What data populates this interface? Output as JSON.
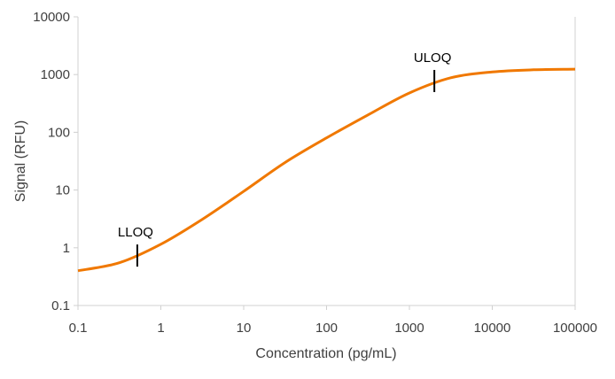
{
  "chart_data": {
    "type": "line",
    "title": "",
    "xlabel": "Concentration (pg/mL)",
    "ylabel": "Signal (RFU)",
    "x_scale": "log",
    "y_scale": "log",
    "xlim": [
      0.1,
      100000
    ],
    "ylim": [
      0.1,
      10000
    ],
    "x_ticks": [
      "0.1",
      "1",
      "10",
      "100",
      "1000",
      "10000",
      "100000"
    ],
    "y_ticks": [
      "0.1",
      "1",
      "10",
      "100",
      "1000",
      "10000"
    ],
    "grid": false,
    "legend": "none",
    "series": [
      {
        "color": "#F07800",
        "x": [
          0.1,
          0.316,
          1,
          3.16,
          10,
          31.6,
          100,
          316,
          1000,
          3162,
          10000,
          31623,
          100000
        ],
        "y": [
          0.4,
          0.55,
          1.15,
          3.1,
          9.5,
          30,
          80,
          200,
          480,
          880,
          1110,
          1210,
          1240
        ]
      }
    ],
    "annotations": [
      {
        "label": "LLOQ",
        "x": 0.52,
        "y": 0.72
      },
      {
        "label": "ULOQ",
        "x": 2000,
        "y": 760
      }
    ]
  }
}
